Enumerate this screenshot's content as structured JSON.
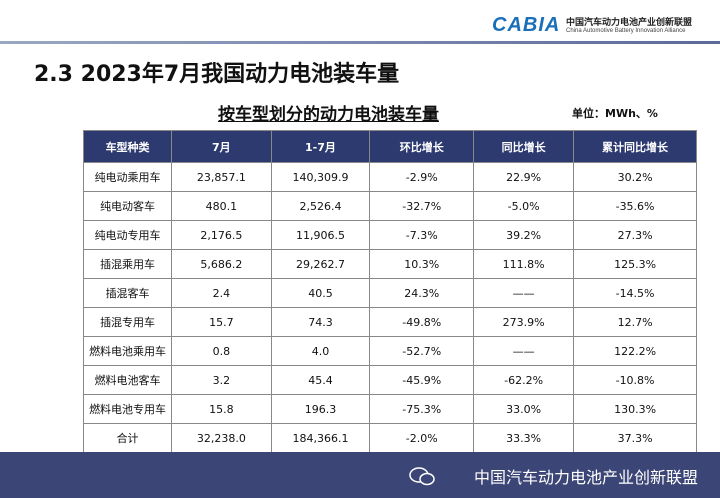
{
  "header": {
    "logo_text": "CABIA",
    "org_cn": "中国汽车动力电池产业创新联盟",
    "org_en": "China Automotive Battery Innovation Alliance"
  },
  "title": "2.3 2023年7月我国动力电池装车量",
  "subtitle": "按车型划分的动力电池装车量",
  "unit": "单位：MWh、%",
  "table": {
    "columns": [
      "车型种类",
      "7月",
      "1-7月",
      "环比增长",
      "同比增长",
      "累计同比增长"
    ],
    "rows": [
      [
        "纯电动乘用车",
        "23,857.1",
        "140,309.9",
        "-2.9%",
        "22.9%",
        "30.2%"
      ],
      [
        "纯电动客车",
        "480.1",
        "2,526.4",
        "-32.7%",
        "-5.0%",
        "-35.6%"
      ],
      [
        "纯电动专用车",
        "2,176.5",
        "11,906.5",
        "-7.3%",
        "39.2%",
        "27.3%"
      ],
      [
        "插混乘用车",
        "5,686.2",
        "29,262.7",
        "10.3%",
        "111.8%",
        "125.3%"
      ],
      [
        "插混客车",
        "2.4",
        "40.5",
        "24.3%",
        "——",
        "-14.5%"
      ],
      [
        "插混专用车",
        "15.7",
        "74.3",
        "-49.8%",
        "273.9%",
        "12.7%"
      ],
      [
        "燃料电池乘用车",
        "0.8",
        "4.0",
        "-52.7%",
        "——",
        "122.2%"
      ],
      [
        "燃料电池客车",
        "3.2",
        "45.4",
        "-45.9%",
        "-62.2%",
        "-10.8%"
      ],
      [
        "燃料电池专用车",
        "15.8",
        "196.3",
        "-75.3%",
        "33.0%",
        "130.3%"
      ],
      [
        "合计",
        "32,238.0",
        "184,366.1",
        "-2.0%",
        "33.3%",
        "37.3%"
      ]
    ]
  },
  "footer": {
    "text": "中国汽车动力电池产业创新联盟"
  }
}
